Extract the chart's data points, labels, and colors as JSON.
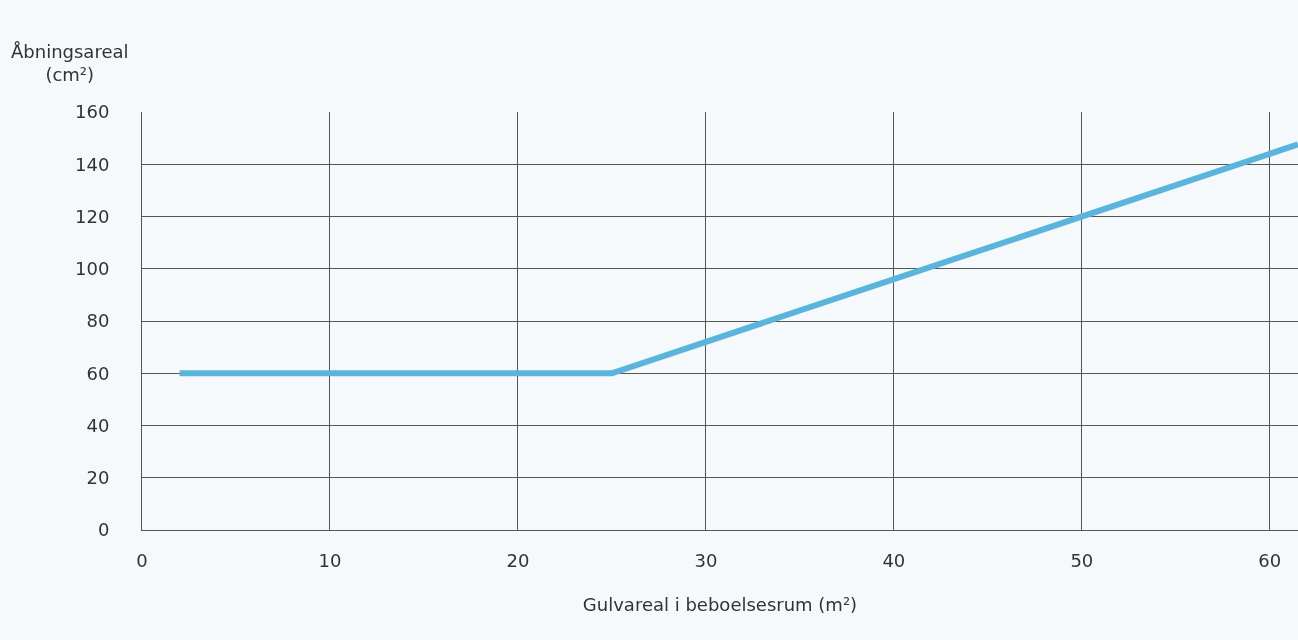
{
  "chart_data": {
    "type": "line",
    "xlabel": "Gulvareal i beboelsesrum (m²)",
    "ylabel": "Åbningsareal\n(cm²)",
    "series": [
      {
        "color": "#5ab4dc",
        "x": [
          2,
          25,
          61.5
        ],
        "values": [
          60,
          60,
          147.6
        ]
      }
    ],
    "xlim": [
      0,
      61.5
    ],
    "xticks": [
      0,
      10,
      20,
      30,
      40,
      50,
      60
    ],
    "ylim": [
      0,
      160
    ],
    "yticks": [
      0,
      20,
      40,
      60,
      80,
      100,
      120,
      140,
      160
    ],
    "grid": true,
    "marker": "none",
    "line_style": "solid"
  }
}
